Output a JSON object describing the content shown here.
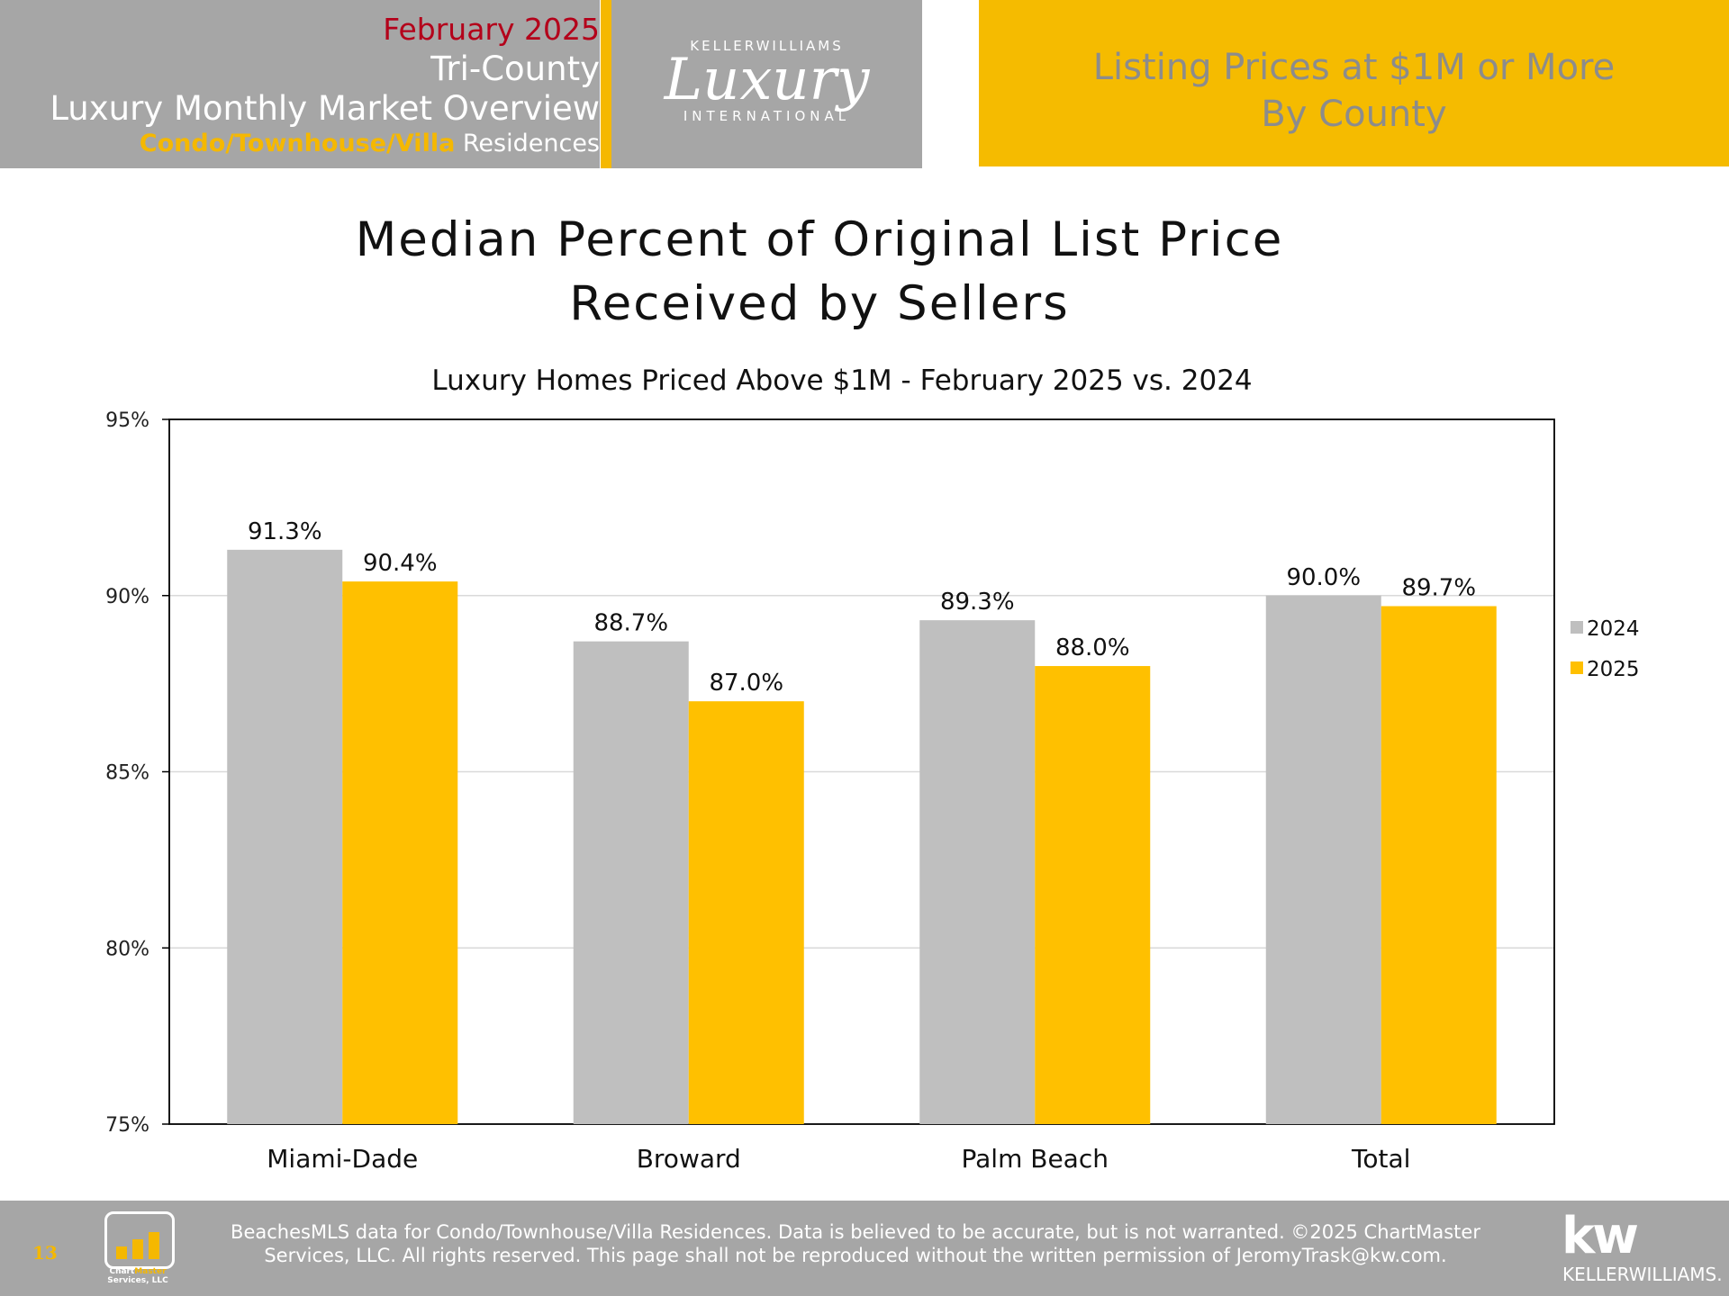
{
  "header": {
    "month": "February 2025",
    "region": "Tri-County",
    "overview": "Luxury Monthly Market Overview",
    "property_type_accent": "Condo/Townhouse/Villa",
    "property_type_rest": " Residences",
    "logo": {
      "brand": "KELLERWILLIAMS",
      "script": "Luxury",
      "sub": "INTERNATIONAL"
    },
    "right_line1": "Listing Prices at $1M or More",
    "right_line2": "By County"
  },
  "title_line1": "Median Percent of Original List Price",
  "title_line2": "Received by Sellers",
  "subtitle": "Luxury Homes Priced Above $1M - February 2025 vs. 2024",
  "chart_data": {
    "type": "bar",
    "title": "Median Percent of Original List Price Received by Sellers",
    "subtitle": "Luxury Homes Priced Above $1M - February 2025 vs. 2024",
    "categories": [
      "Miami-Dade",
      "Broward",
      "Palm Beach",
      "Total"
    ],
    "series": [
      {
        "name": "2024",
        "values": [
          91.3,
          88.7,
          89.3,
          90.0
        ],
        "labels": [
          "91.3%",
          "88.7%",
          "89.3%",
          "90.0%"
        ],
        "color": "#bfbfbf"
      },
      {
        "name": "2025",
        "values": [
          90.4,
          87.0,
          88.0,
          89.7
        ],
        "labels": [
          "90.4%",
          "87.0%",
          "88.0%",
          "89.7%"
        ],
        "color": "#ffc000"
      }
    ],
    "ylim": [
      75,
      95
    ],
    "yticks": [
      75,
      80,
      85,
      90,
      95
    ],
    "ytick_labels": [
      "75%",
      "80%",
      "85%",
      "90%",
      "95%"
    ],
    "grid": true,
    "legend": "right"
  },
  "footer": {
    "page_number": "13",
    "chartmaster_caption_1": "Chart",
    "chartmaster_caption_accent": "Master",
    "chartmaster_caption_2": "Services, LLC",
    "disclaimer_line1": "BeachesMLS data for Condo/Townhouse/Villa Residences.  Data is believed to be accurate, but is not warranted.   ©2025  ChartMaster",
    "disclaimer_line2": "Services, LLC.  All rights reserved. This page shall not be reproduced without the written permission of JeromyTrask@kw.com.",
    "kw_logo": "kw",
    "kw_name": "KELLERWILLIAMS."
  }
}
